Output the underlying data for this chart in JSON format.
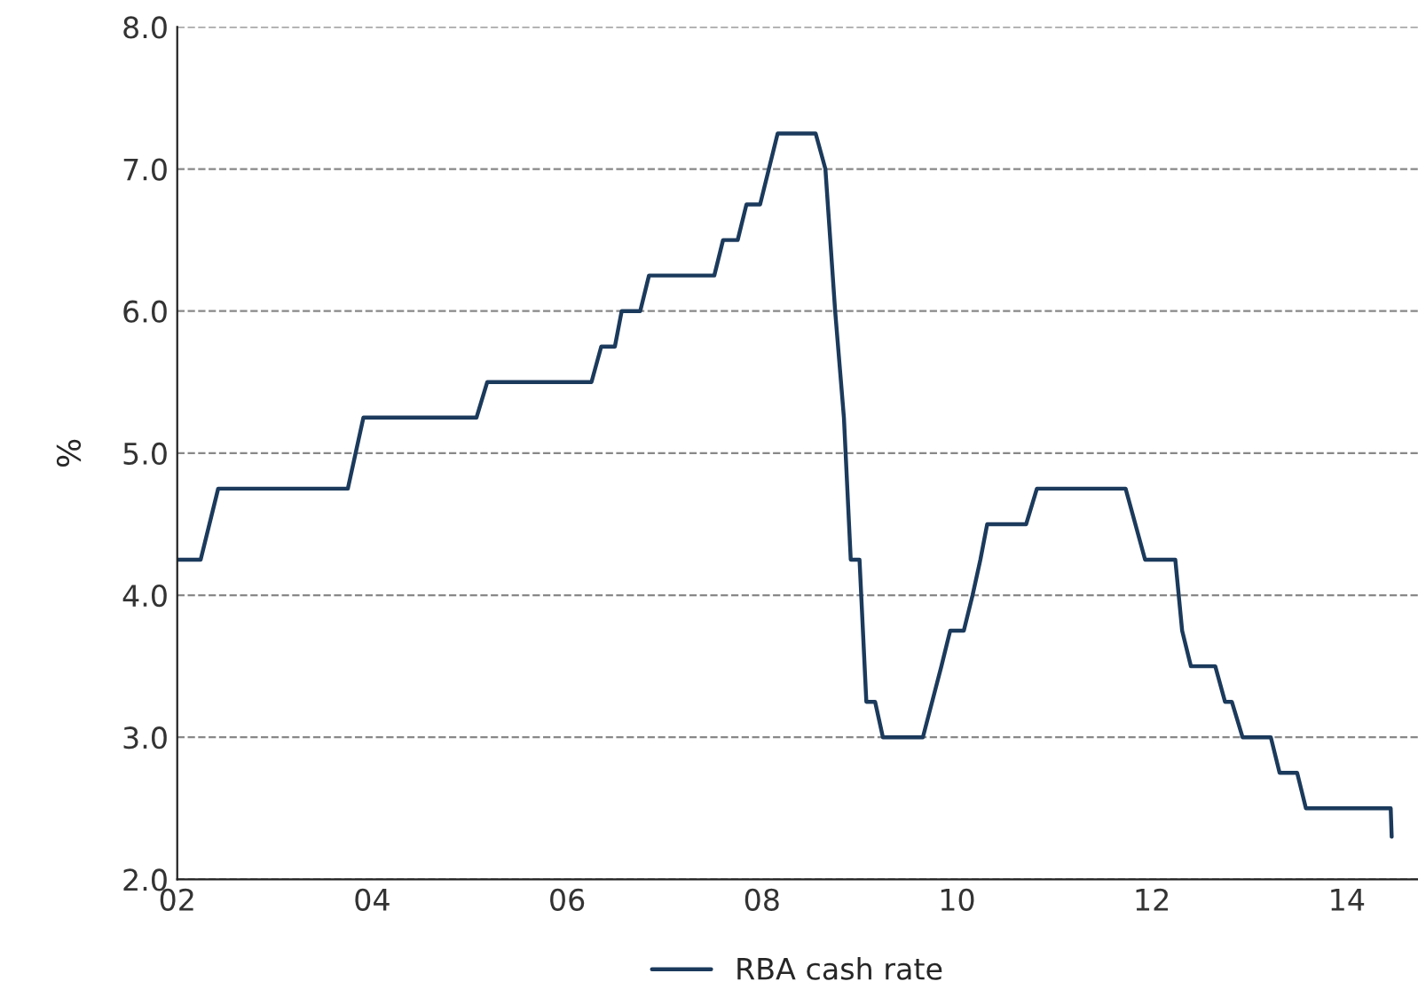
{
  "chart_data": {
    "type": "line",
    "ylabel": "%",
    "x": [
      2002.0,
      2002.24,
      2002.42,
      2003.75,
      2003.91,
      2005.07,
      2005.18,
      2006.25,
      2006.35,
      2006.49,
      2006.56,
      2006.75,
      2006.84,
      2007.51,
      2007.6,
      2007.75,
      2007.84,
      2007.98,
      2008.16,
      2008.55,
      2008.65,
      2008.75,
      2008.84,
      2008.91,
      2009.0,
      2009.07,
      2009.16,
      2009.24,
      2009.65,
      2009.84,
      2009.93,
      2010.07,
      2010.16,
      2010.24,
      2010.31,
      2010.71,
      2010.82,
      2011.73,
      2011.93,
      2012.24,
      2012.31,
      2012.4,
      2012.65,
      2012.75,
      2012.82,
      2012.93,
      2013.22,
      2013.31,
      2013.49,
      2013.58,
      2014.45,
      2014.46
    ],
    "series": [
      {
        "name": "RBA cash rate",
        "color": "#1b3a5c",
        "values": [
          4.25,
          4.25,
          4.75,
          4.75,
          5.25,
          5.25,
          5.5,
          5.5,
          5.75,
          5.75,
          6.0,
          6.0,
          6.25,
          6.25,
          6.5,
          6.5,
          6.75,
          6.75,
          7.25,
          7.25,
          7.0,
          6.0,
          5.25,
          4.25,
          4.25,
          3.25,
          3.25,
          3.0,
          3.0,
          3.5,
          3.75,
          3.75,
          4.0,
          4.25,
          4.5,
          4.5,
          4.75,
          4.75,
          4.25,
          4.25,
          3.75,
          3.5,
          3.5,
          3.25,
          3.25,
          3.0,
          3.0,
          2.75,
          2.75,
          2.5,
          2.5,
          2.3
        ]
      }
    ],
    "xlim": [
      2002,
      2014.73
    ],
    "xticks": [
      {
        "value": 2002,
        "label": "02"
      },
      {
        "value": 2004,
        "label": "04"
      },
      {
        "value": 2006,
        "label": "06"
      },
      {
        "value": 2008,
        "label": "08"
      },
      {
        "value": 2010,
        "label": "10"
      },
      {
        "value": 2012,
        "label": "12"
      },
      {
        "value": 2014,
        "label": "14"
      }
    ],
    "ylim": [
      2.0,
      8.0
    ],
    "yticks": [
      {
        "value": 2,
        "label": "2.0"
      },
      {
        "value": 3,
        "label": "3.0"
      },
      {
        "value": 4,
        "label": "4.0"
      },
      {
        "value": 5,
        "label": "5.0"
      },
      {
        "value": 6,
        "label": "6.0"
      },
      {
        "value": 7,
        "label": "7.0"
      },
      {
        "value": 8,
        "label": "8.0"
      }
    ],
    "grid": "y",
    "legend": "bottom"
  }
}
